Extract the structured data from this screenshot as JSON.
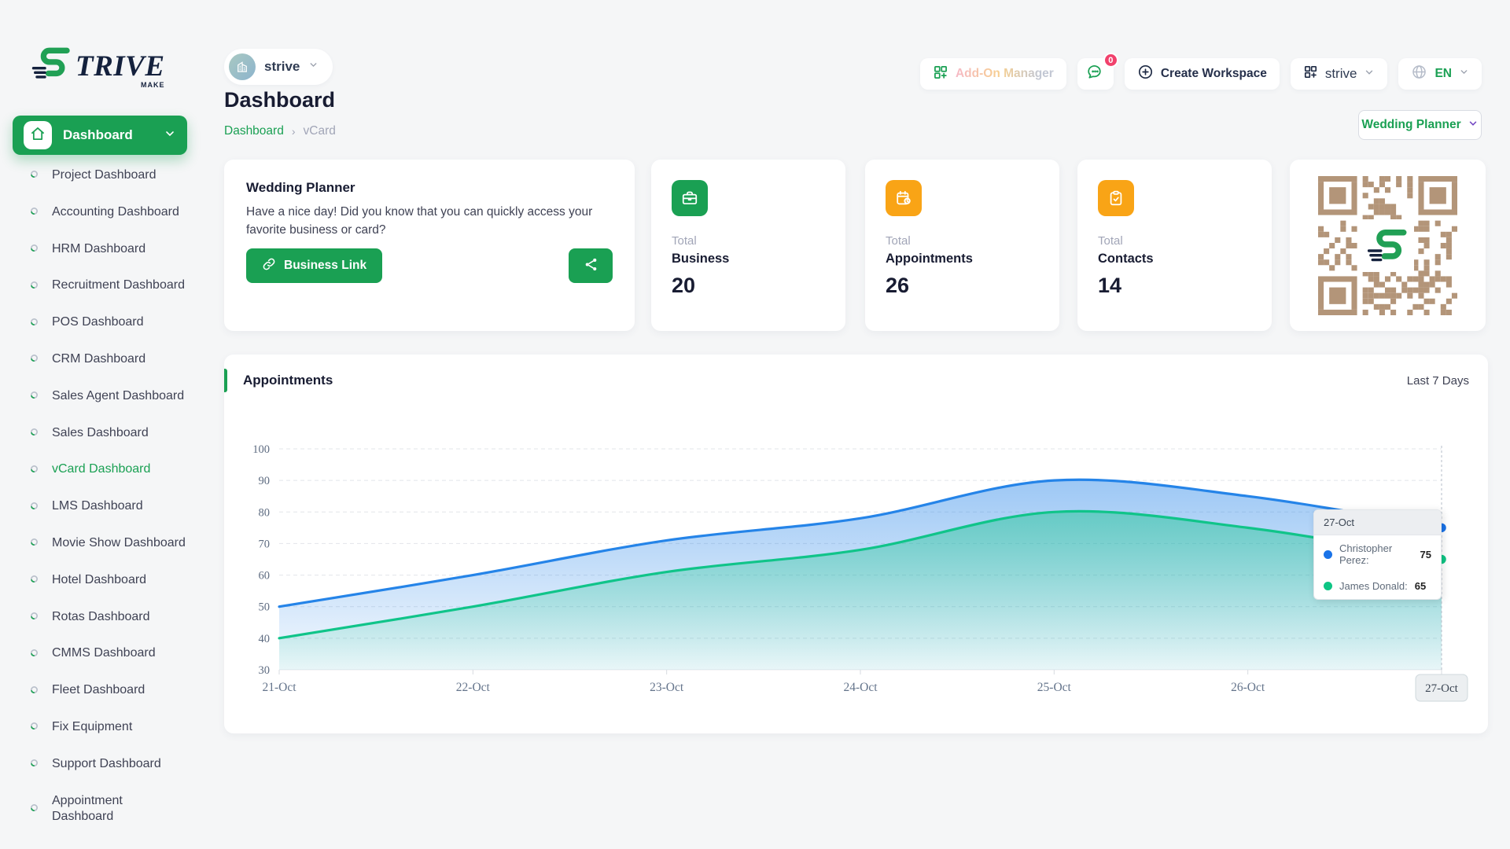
{
  "app": {
    "logo_main": "TRIVE",
    "logo_sub": "MAKE",
    "accent": "#1aa053"
  },
  "sidebar": {
    "active_group": "Dashboard",
    "active_item": "vCard Dashboard",
    "items": [
      "Project Dashboard",
      "Accounting Dashboard",
      "HRM Dashboard",
      "Recruitment Dashboard",
      "POS Dashboard",
      "CRM Dashboard",
      "Sales Agent Dashboard",
      "Sales Dashboard",
      "vCard Dashboard",
      "LMS Dashboard",
      "Movie Show Dashboard",
      "Hotel Dashboard",
      "Rotas Dashboard",
      "CMMS Dashboard",
      "Fleet Dashboard",
      "Fix Equipment",
      "Support Dashboard",
      "Appointment Dashboard"
    ]
  },
  "header": {
    "workspace_name": "strive",
    "addon_manager_label": "Add-On Manager",
    "chat_badge": "0",
    "create_workspace_label": "Create Workspace",
    "workspace_selector_label": "strive",
    "language_label": "EN"
  },
  "page": {
    "title": "Dashboard",
    "crumb1": "Dashboard",
    "crumb_sep": "›",
    "crumb2": "vCard",
    "business_selector_label": "Wedding Planner"
  },
  "welcome_card": {
    "title": "Wedding Planner",
    "description": "Have a nice day! Did you know that you can quickly access your favorite business or card?",
    "business_link_label": "Business Link"
  },
  "stats": [
    {
      "label_top": "Total",
      "label": "Business",
      "value": "20",
      "color": "#1aa053",
      "icon": "briefcase-icon"
    },
    {
      "label_top": "Total",
      "label": "Appointments",
      "value": "26",
      "color": "#f9a416",
      "icon": "calendar-clock-icon"
    },
    {
      "label_top": "Total",
      "label": "Contacts",
      "value": "14",
      "color": "#f9a416",
      "icon": "clipboard-check-icon"
    }
  ],
  "qr": {
    "color": "#b39579"
  },
  "chart_card": {
    "title": "Appointments",
    "range_label": "Last 7 Days"
  },
  "chart_data": {
    "type": "area",
    "title": "Appointments",
    "categories": [
      "21-Oct",
      "22-Oct",
      "23-Oct",
      "24-Oct",
      "25-Oct",
      "26-Oct",
      "27-Oct"
    ],
    "series": [
      {
        "name": "Christopher Perez",
        "color": "#2584e8",
        "dot": "#1a73e8",
        "values": [
          50,
          60,
          71,
          78,
          90,
          85,
          75
        ]
      },
      {
        "name": "James Donald",
        "color": "#10c489",
        "dot": "#0ec584",
        "values": [
          40,
          50,
          61,
          68,
          80,
          75,
          65
        ]
      }
    ],
    "ylim": [
      30,
      100
    ],
    "ytick_step": 10,
    "grid": "dashed-horizontal",
    "legend_position": "none",
    "crosshair_category": "27-Oct",
    "tooltip": {
      "title": "27-Oct",
      "rows": [
        {
          "name": "Christopher Perez:",
          "value": "75",
          "color": "#1a73e8"
        },
        {
          "name": "James Donald:",
          "value": "65",
          "color": "#0ec584"
        }
      ]
    }
  }
}
